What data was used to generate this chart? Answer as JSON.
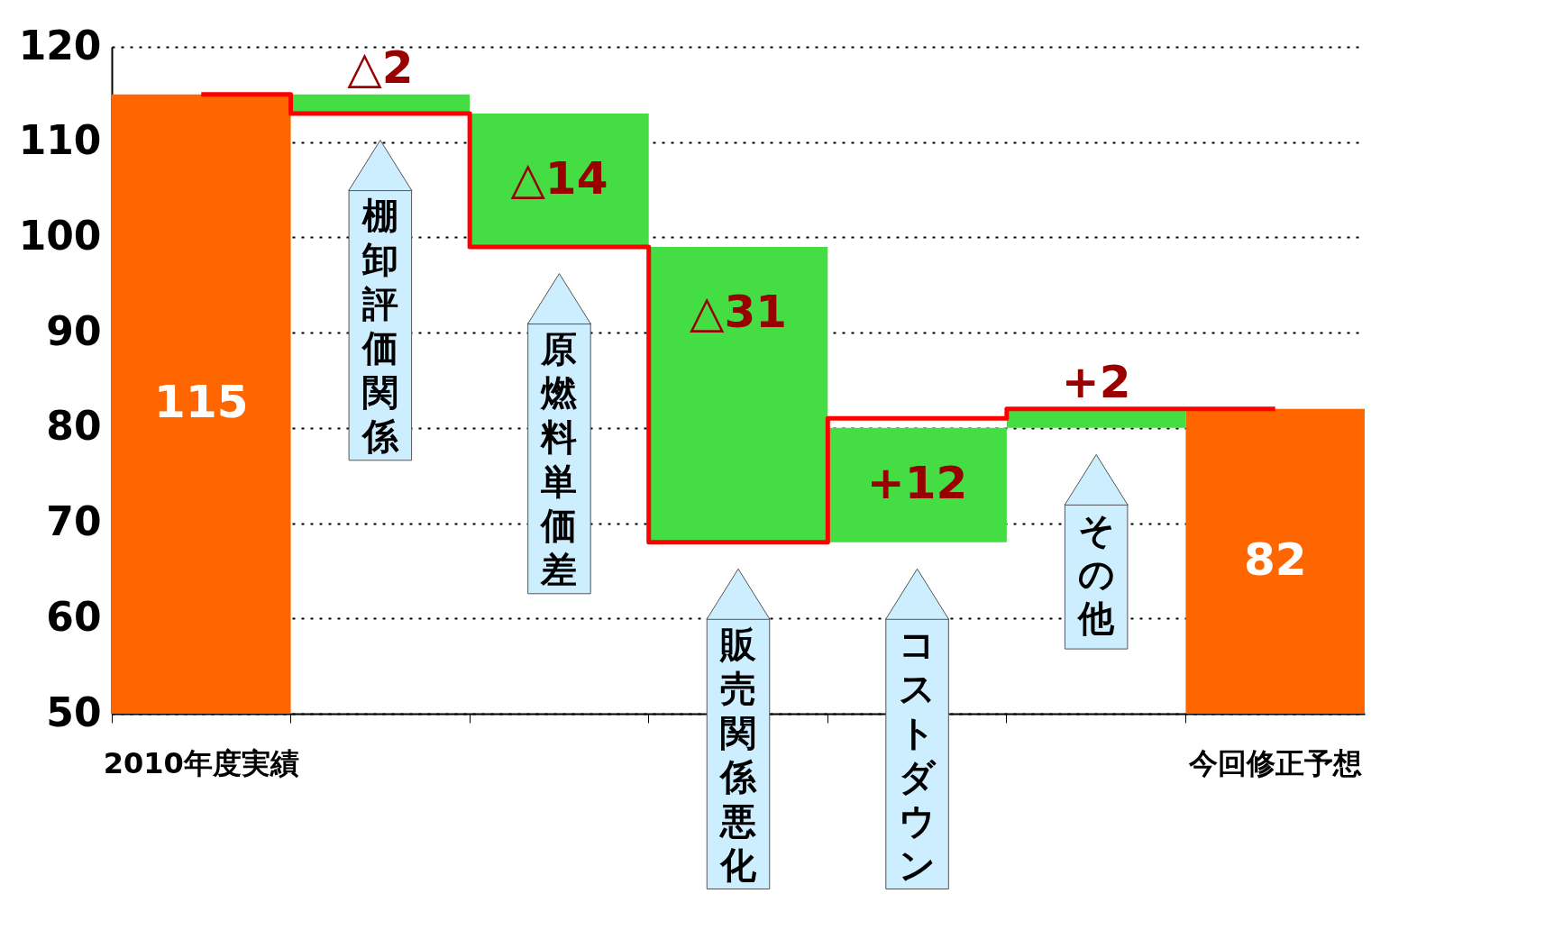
{
  "chart_data": {
    "type": "bar",
    "categories": [
      "2010年度実績",
      "棚卸評価関係",
      "原燃料単価差",
      "販売関係悪化",
      "コストダウン",
      "その他",
      "今回修正予想"
    ],
    "values": [
      115,
      -2,
      -14,
      -31,
      12,
      2,
      82
    ],
    "base": [
      null,
      115,
      113,
      99,
      68,
      80,
      null
    ],
    "colors": [
      "#ff6600",
      "#44dd44",
      "#44dd44",
      "#44dd44",
      "#44dd44",
      "#44dd44",
      "#ff6600"
    ],
    "value_labels": [
      "115",
      "△2",
      "△14",
      "△31",
      "+12",
      "+2",
      "82"
    ],
    "series": [
      {
        "type": "step",
        "color": "#ff0000",
        "values": [
          115,
          113,
          99,
          68,
          81,
          82,
          82
        ]
      }
    ],
    "ylim": [
      50,
      120
    ],
    "yticks": [
      50,
      60,
      70,
      80,
      90,
      100,
      110,
      120
    ],
    "grid": "y"
  }
}
